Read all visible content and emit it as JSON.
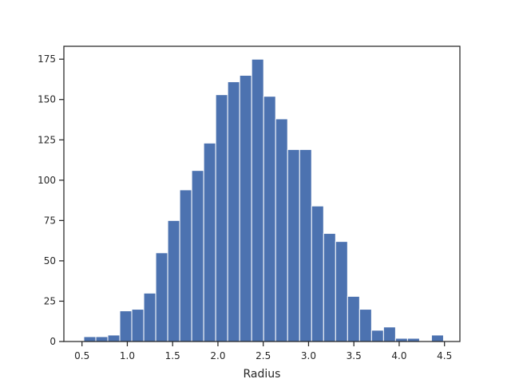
{
  "chart_data": {
    "type": "bar",
    "title": "",
    "xlabel": "Radius",
    "ylabel": "",
    "bin_start": 0.52,
    "bin_width": 0.1323,
    "counts": [
      3,
      3,
      4,
      19,
      20,
      30,
      55,
      75,
      94,
      106,
      123,
      153,
      161,
      165,
      175,
      152,
      138,
      119,
      119,
      84,
      67,
      62,
      28,
      20,
      7,
      9,
      2,
      2,
      0,
      4
    ],
    "xlim": [
      0.3,
      4.67
    ],
    "ylim": [
      0,
      183
    ],
    "x_ticks": [
      0.5,
      1.0,
      1.5,
      2.0,
      2.5,
      3.0,
      3.5,
      4.0,
      4.5
    ],
    "x_tick_labels": [
      "0.5",
      "1.0",
      "1.5",
      "2.0",
      "2.5",
      "3.0",
      "3.5",
      "4.0",
      "4.5"
    ],
    "y_ticks": [
      0,
      25,
      50,
      75,
      100,
      125,
      150,
      175
    ],
    "y_tick_labels": [
      "0",
      "25",
      "50",
      "75",
      "100",
      "125",
      "150",
      "175"
    ],
    "bar_color": "#4c72b0",
    "grid": false
  }
}
